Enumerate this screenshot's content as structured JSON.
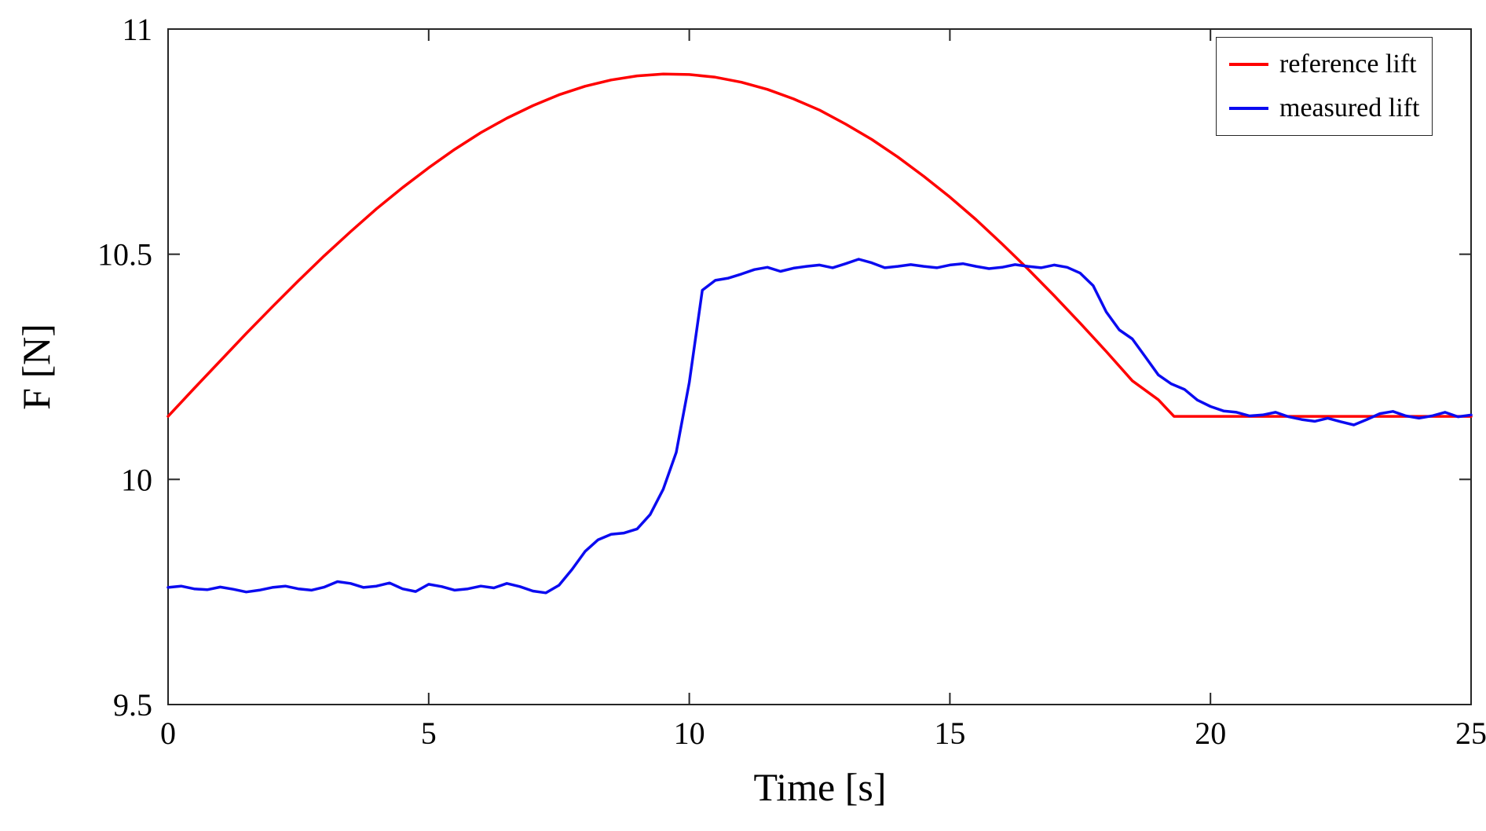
{
  "chart_data": {
    "type": "line",
    "title": "",
    "xlabel": "Time [s]",
    "ylabel": "F [N]",
    "xlim": [
      0,
      25
    ],
    "ylim": [
      9.5,
      11
    ],
    "xticks": [
      0,
      5,
      10,
      15,
      20,
      25
    ],
    "yticks": [
      9.5,
      10,
      10.5,
      11
    ],
    "grid": false,
    "axis_color": "#262626",
    "legend": {
      "position": "top-right"
    },
    "series": [
      {
        "name": "reference lift",
        "color": "#ff0000",
        "x": [
          0,
          0.5,
          1,
          1.5,
          2,
          2.5,
          3,
          3.5,
          4,
          4.5,
          5,
          5.5,
          6,
          6.5,
          7,
          7.5,
          8,
          8.5,
          9,
          9.5,
          10,
          10.5,
          11,
          11.5,
          12,
          12.5,
          13,
          13.5,
          14,
          14.5,
          15,
          15.5,
          16,
          16.5,
          17,
          17.5,
          18,
          18.5,
          19,
          19.3,
          25
        ],
        "y": [
          10.14,
          10.202,
          10.263,
          10.324,
          10.383,
          10.441,
          10.497,
          10.55,
          10.601,
          10.648,
          10.692,
          10.733,
          10.77,
          10.802,
          10.83,
          10.854,
          10.873,
          10.887,
          10.896,
          10.9,
          10.899,
          10.893,
          10.882,
          10.866,
          10.845,
          10.82,
          10.789,
          10.755,
          10.716,
          10.673,
          10.627,
          10.577,
          10.523,
          10.467,
          10.408,
          10.347,
          10.284,
          10.219,
          10.177,
          10.14,
          10.14
        ]
      },
      {
        "name": "measured lift",
        "color": "#0b0bf0",
        "x": [
          0,
          0.25,
          0.5,
          0.75,
          1,
          1.25,
          1.5,
          1.75,
          2,
          2.25,
          2.5,
          2.75,
          3,
          3.25,
          3.5,
          3.75,
          4,
          4.25,
          4.5,
          4.75,
          5,
          5.25,
          5.5,
          5.75,
          6,
          6.25,
          6.5,
          6.75,
          7,
          7.25,
          7.5,
          7.75,
          8,
          8.25,
          8.5,
          8.75,
          9,
          9.25,
          9.5,
          9.75,
          10,
          10.25,
          10.5,
          10.75,
          11,
          11.25,
          11.5,
          11.75,
          12,
          12.25,
          12.5,
          12.75,
          13,
          13.25,
          13.5,
          13.75,
          14,
          14.25,
          14.5,
          14.75,
          15,
          15.25,
          15.5,
          15.75,
          16,
          16.25,
          16.5,
          16.75,
          17,
          17.25,
          17.5,
          17.75,
          18,
          18.25,
          18.5,
          18.75,
          19,
          19.25,
          19.5,
          19.75,
          20,
          20.25,
          20.5,
          20.75,
          21,
          21.25,
          21.5,
          21.75,
          22,
          22.25,
          22.5,
          22.75,
          23,
          23.25,
          23.5,
          23.75,
          24,
          24.25,
          24.5,
          24.75,
          25
        ],
        "y": [
          9.76,
          9.763,
          9.757,
          9.755,
          9.761,
          9.756,
          9.75,
          9.754,
          9.76,
          9.763,
          9.757,
          9.754,
          9.761,
          9.773,
          9.769,
          9.76,
          9.763,
          9.77,
          9.757,
          9.751,
          9.767,
          9.762,
          9.754,
          9.757,
          9.763,
          9.759,
          9.769,
          9.762,
          9.752,
          9.748,
          9.765,
          9.8,
          9.84,
          9.866,
          9.878,
          9.881,
          9.89,
          9.922,
          9.978,
          10.06,
          10.215,
          10.42,
          10.442,
          10.447,
          10.456,
          10.466,
          10.471,
          10.462,
          10.469,
          10.473,
          10.476,
          10.47,
          10.479,
          10.489,
          10.481,
          10.47,
          10.473,
          10.477,
          10.473,
          10.47,
          10.476,
          10.479,
          10.473,
          10.468,
          10.471,
          10.477,
          10.473,
          10.47,
          10.476,
          10.471,
          10.458,
          10.43,
          10.372,
          10.332,
          10.312,
          10.272,
          10.232,
          10.212,
          10.2,
          10.176,
          10.162,
          10.152,
          10.149,
          10.141,
          10.143,
          10.149,
          10.139,
          10.133,
          10.129,
          10.136,
          10.128,
          10.121,
          10.133,
          10.146,
          10.151,
          10.141,
          10.136,
          10.141,
          10.149,
          10.139,
          10.143
        ]
      }
    ]
  }
}
